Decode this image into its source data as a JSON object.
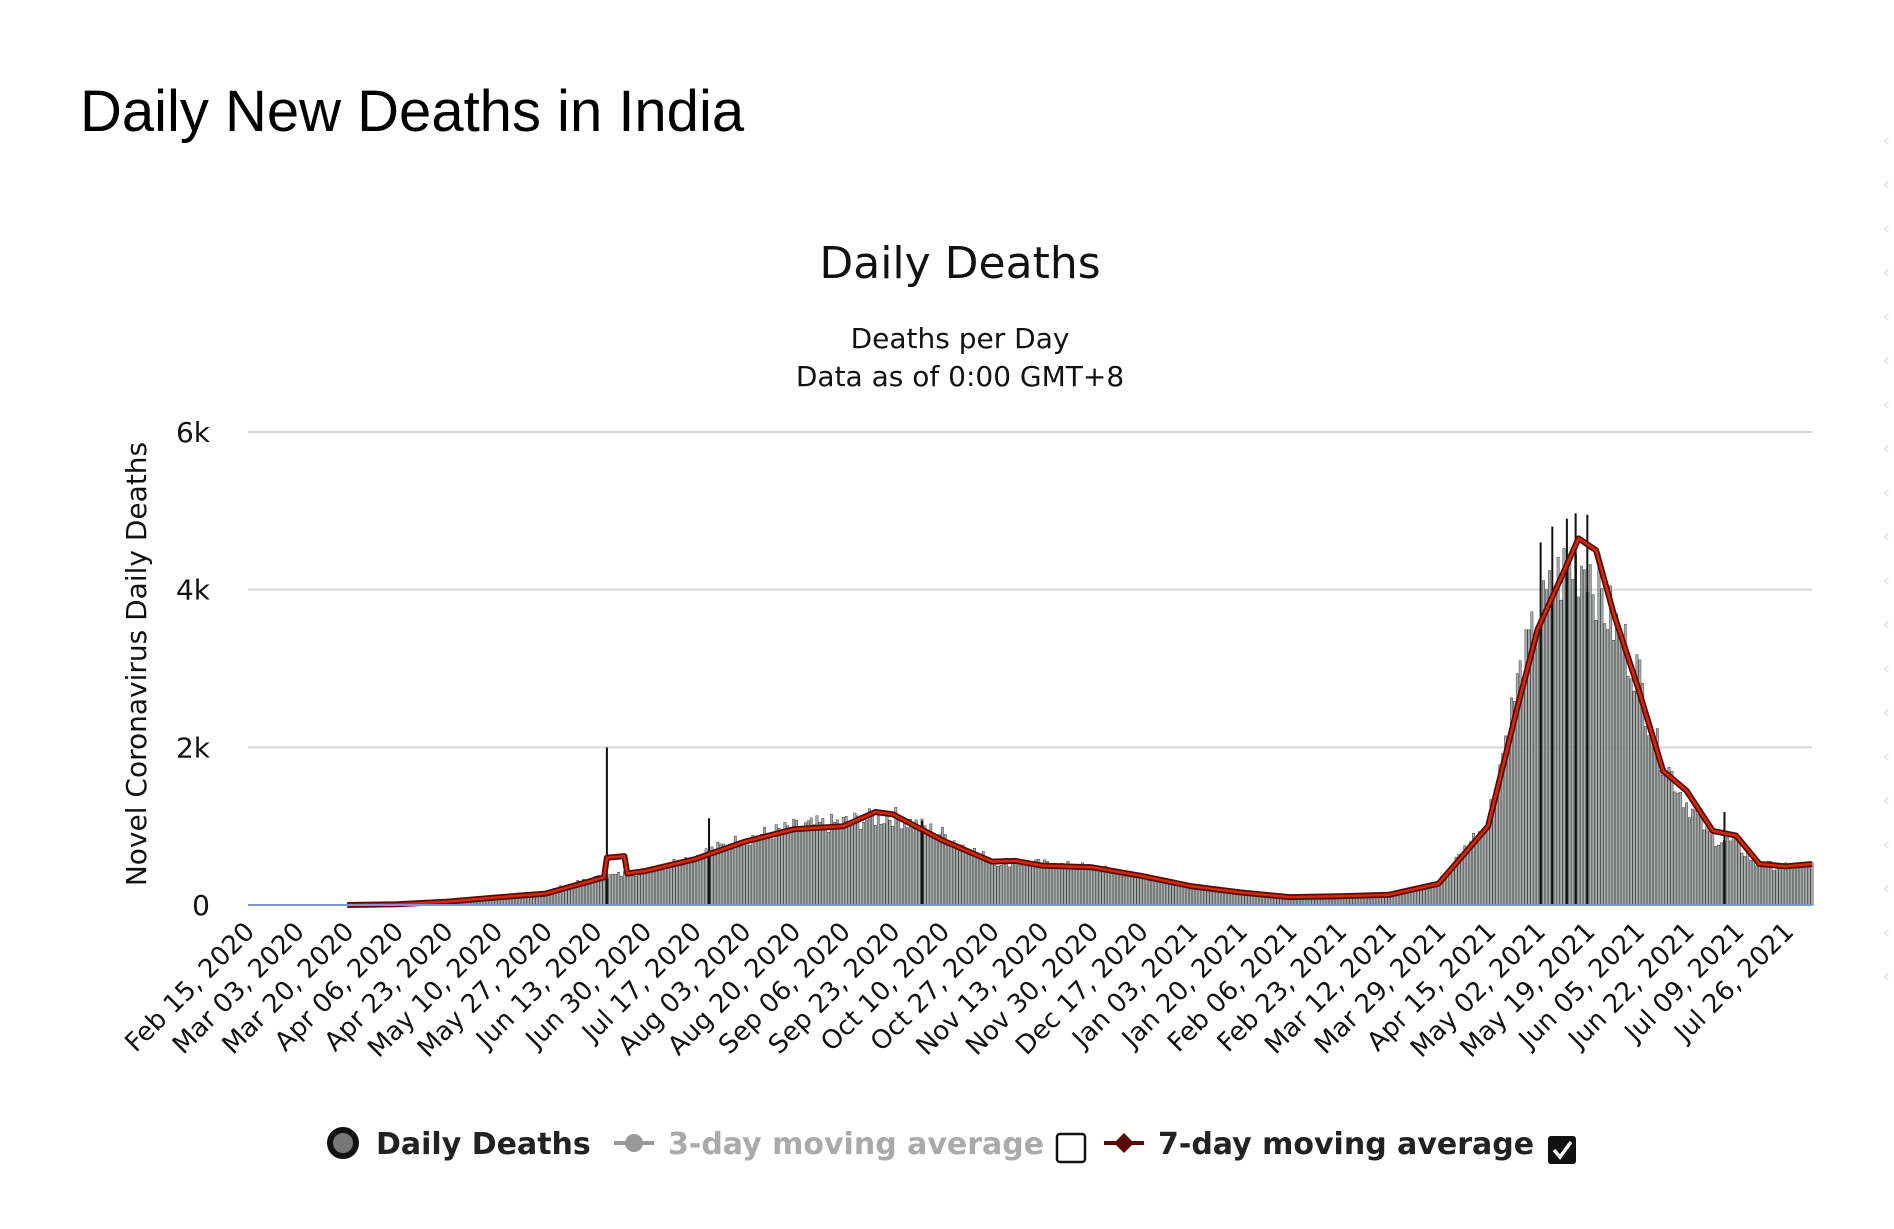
{
  "page": {
    "title": "Daily New Deaths in India"
  },
  "chart_data": {
    "type": "bar",
    "title": "Daily Deaths",
    "subtitle": [
      "Deaths per Day",
      "Data as of 0:00 GMT+8"
    ],
    "ylabel": "Novel Coronavirus Daily Deaths",
    "xlabel": "",
    "ylim": [
      0,
      6000
    ],
    "yticks": [
      0,
      2000,
      4000,
      6000
    ],
    "ytick_labels": [
      "0",
      "2k",
      "4k",
      "6k"
    ],
    "grid": true,
    "x_start": "Feb 15, 2020",
    "x_end": "Aug 04, 2021",
    "xtick_labels": [
      "Feb 15, 2020",
      "Mar 03, 2020",
      "Mar 20, 2020",
      "Apr 06, 2020",
      "Apr 23, 2020",
      "May 10, 2020",
      "May 27, 2020",
      "Jun 13, 2020",
      "Jun 30, 2020",
      "Jul 17, 2020",
      "Aug 03, 2020",
      "Aug 20, 2020",
      "Sep 06, 2020",
      "Sep 23, 2020",
      "Oct 10, 2020",
      "Oct 27, 2020",
      "Nov 13, 2020",
      "Nov 30, 2020",
      "Dec 17, 2020",
      "Jan 03, 2021",
      "Jan 20, 2021",
      "Feb 06, 2021",
      "Feb 23, 2021",
      "Mar 12, 2021",
      "Mar 29, 2021",
      "Apr 15, 2021",
      "May 02, 2021",
      "May 19, 2021",
      "Jun 05, 2021",
      "Jun 22, 2021",
      "Jul 09, 2021",
      "Jul 26, 2021"
    ],
    "daily_deaths_curve": [
      {
        "date": "Feb 15, 2020",
        "value": 0
      },
      {
        "date": "Mar 03, 2020",
        "value": 0
      },
      {
        "date": "Mar 20, 2020",
        "value": 2
      },
      {
        "date": "Apr 06, 2020",
        "value": 20
      },
      {
        "date": "Apr 23, 2020",
        "value": 45
      },
      {
        "date": "May 10, 2020",
        "value": 110
      },
      {
        "date": "May 27, 2020",
        "value": 170
      },
      {
        "date": "Jun 13, 2020",
        "value": 340
      },
      {
        "date": "Jun 30, 2020",
        "value": 430
      },
      {
        "date": "Jul 17, 2020",
        "value": 620
      },
      {
        "date": "Aug 03, 2020",
        "value": 840
      },
      {
        "date": "Aug 20, 2020",
        "value": 980
      },
      {
        "date": "Sep 06, 2020",
        "value": 1050
      },
      {
        "date": "Sep 23, 2020",
        "value": 1130
      },
      {
        "date": "Oct 10, 2020",
        "value": 900
      },
      {
        "date": "Oct 27, 2020",
        "value": 560
      },
      {
        "date": "Nov 13, 2020",
        "value": 520
      },
      {
        "date": "Nov 30, 2020",
        "value": 480
      },
      {
        "date": "Dec 17, 2020",
        "value": 360
      },
      {
        "date": "Jan 03, 2021",
        "value": 230
      },
      {
        "date": "Jan 20, 2021",
        "value": 150
      },
      {
        "date": "Feb 06, 2021",
        "value": 100
      },
      {
        "date": "Feb 23, 2021",
        "value": 100
      },
      {
        "date": "Mar 12, 2021",
        "value": 120
      },
      {
        "date": "Mar 29, 2021",
        "value": 280
      },
      {
        "date": "Apr 15, 2021",
        "value": 1100
      },
      {
        "date": "Apr 25, 2021",
        "value": 2800
      },
      {
        "date": "May 02, 2021",
        "value": 3600
      },
      {
        "date": "May 10, 2021",
        "value": 4200
      },
      {
        "date": "May 19, 2021",
        "value": 4400
      },
      {
        "date": "May 25, 2021",
        "value": 3800
      },
      {
        "date": "Jun 05, 2021",
        "value": 3000
      },
      {
        "date": "Jun 12, 2021",
        "value": 2000
      },
      {
        "date": "Jun 22, 2021",
        "value": 1300
      },
      {
        "date": "Jul 01, 2021",
        "value": 850
      },
      {
        "date": "Jul 09, 2021",
        "value": 780
      },
      {
        "date": "Jul 16, 2021",
        "value": 520
      },
      {
        "date": "Jul 26, 2021",
        "value": 480
      },
      {
        "date": "Aug 04, 2021",
        "value": 500
      }
    ],
    "daily_deaths_spikes": [
      {
        "date": "Jun 17, 2020",
        "value": 2000
      },
      {
        "date": "Jul 22, 2020",
        "value": 1100
      },
      {
        "date": "Oct 03, 2020",
        "value": 1070
      },
      {
        "date": "May 03, 2021",
        "value": 4600
      },
      {
        "date": "May 07, 2021",
        "value": 4800
      },
      {
        "date": "May 12, 2021",
        "value": 4900
      },
      {
        "date": "May 15, 2021",
        "value": 4970
      },
      {
        "date": "May 19, 2021",
        "value": 4950
      },
      {
        "date": "Jul 05, 2021",
        "value": 1180
      }
    ],
    "ma7": [
      {
        "date": "Mar 20, 2020",
        "value": 0
      },
      {
        "date": "Apr 06, 2020",
        "value": 10
      },
      {
        "date": "Apr 23, 2020",
        "value": 40
      },
      {
        "date": "May 10, 2020",
        "value": 95
      },
      {
        "date": "May 27, 2020",
        "value": 145
      },
      {
        "date": "Jun 13, 2020",
        "value": 320
      },
      {
        "date": "Jun 16, 2020",
        "value": 350
      },
      {
        "date": "Jun 17, 2020",
        "value": 600
      },
      {
        "date": "Jun 23, 2020",
        "value": 620
      },
      {
        "date": "Jun 24, 2020",
        "value": 400
      },
      {
        "date": "Jun 30, 2020",
        "value": 430
      },
      {
        "date": "Jul 17, 2020",
        "value": 580
      },
      {
        "date": "Aug 03, 2020",
        "value": 800
      },
      {
        "date": "Aug 20, 2020",
        "value": 960
      },
      {
        "date": "Sep 06, 2020",
        "value": 1000
      },
      {
        "date": "Sep 17, 2020",
        "value": 1180
      },
      {
        "date": "Sep 23, 2020",
        "value": 1150
      },
      {
        "date": "Oct 10, 2020",
        "value": 820
      },
      {
        "date": "Oct 27, 2020",
        "value": 550
      },
      {
        "date": "Nov 04, 2020",
        "value": 560
      },
      {
        "date": "Nov 13, 2020",
        "value": 500
      },
      {
        "date": "Nov 30, 2020",
        "value": 480
      },
      {
        "date": "Dec 17, 2020",
        "value": 370
      },
      {
        "date": "Jan 03, 2021",
        "value": 240
      },
      {
        "date": "Jan 20, 2021",
        "value": 160
      },
      {
        "date": "Feb 06, 2021",
        "value": 100
      },
      {
        "date": "Feb 23, 2021",
        "value": 110
      },
      {
        "date": "Mar 12, 2021",
        "value": 130
      },
      {
        "date": "Mar 29, 2021",
        "value": 270
      },
      {
        "date": "Apr 15, 2021",
        "value": 1000
      },
      {
        "date": "Apr 25, 2021",
        "value": 2500
      },
      {
        "date": "May 02, 2021",
        "value": 3500
      },
      {
        "date": "May 10, 2021",
        "value": 4150
      },
      {
        "date": "May 16, 2021",
        "value": 4650
      },
      {
        "date": "May 22, 2021",
        "value": 4500
      },
      {
        "date": "May 28, 2021",
        "value": 3700
      },
      {
        "date": "Jun 05, 2021",
        "value": 2800
      },
      {
        "date": "Jun 14, 2021",
        "value": 1700
      },
      {
        "date": "Jun 22, 2021",
        "value": 1450
      },
      {
        "date": "Jul 01, 2021",
        "value": 940
      },
      {
        "date": "Jul 09, 2021",
        "value": 880
      },
      {
        "date": "Jul 17, 2021",
        "value": 520
      },
      {
        "date": "Jul 26, 2021",
        "value": 490
      },
      {
        "date": "Aug 04, 2021",
        "value": 520
      }
    ],
    "legend": [
      {
        "label": "Daily Deaths",
        "color": "#222222",
        "marker": "circle",
        "enabled": true
      },
      {
        "label": "3-day moving average",
        "color": "#999999",
        "marker": "circle-line",
        "enabled": false
      },
      {
        "label": "7-day moving average",
        "color": "#5a0b08",
        "marker": "diamond-line",
        "enabled": true
      }
    ],
    "colors": {
      "bar_fill": "#a8acac",
      "bar_stroke": "#222222",
      "ma7_outer": "#5a0b08",
      "ma7_inner": "#d42a0a",
      "grid": "#d8d8d8",
      "axis_line": "#7b96d4"
    }
  }
}
